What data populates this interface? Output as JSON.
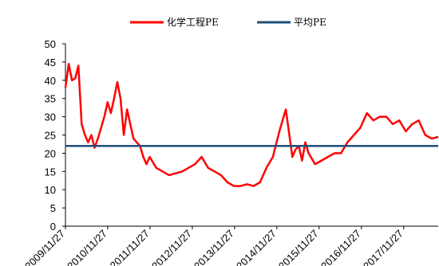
{
  "chart_data": {
    "type": "line",
    "title": "",
    "xlabel": "",
    "ylabel": "",
    "ylim": [
      0,
      50
    ],
    "y_ticks": [
      0,
      5,
      10,
      15,
      20,
      25,
      30,
      35,
      40,
      45,
      50
    ],
    "x_tick_labels": [
      "2009/11/27",
      "2010/11/27",
      "2011/11/27",
      "2012/11/27",
      "2013/11/27",
      "2014/11/27",
      "2015/11/27",
      "2016/11/27",
      "2017/11/27"
    ],
    "legend": {
      "placement": "top-center"
    },
    "grid": false,
    "series": [
      {
        "name": "化学工程PE",
        "color": "#ff0000",
        "x": [
          "2009-11-27",
          "2009-12-25",
          "2010-01-22",
          "2010-02-19",
          "2010-03-19",
          "2010-04-16",
          "2010-05-14",
          "2010-06-11",
          "2010-07-09",
          "2010-08-06",
          "2010-09-03",
          "2010-10-01",
          "2010-10-29",
          "2010-11-26",
          "2010-12-24",
          "2011-01-21",
          "2011-02-18",
          "2011-03-18",
          "2011-04-15",
          "2011-05-13",
          "2011-06-10",
          "2011-07-08",
          "2011-08-05",
          "2011-09-02",
          "2011-09-30",
          "2011-10-28",
          "2011-11-25",
          "2012-01-20",
          "2012-03-16",
          "2012-05-11",
          "2012-07-06",
          "2012-08-31",
          "2012-10-26",
          "2012-12-21",
          "2013-02-15",
          "2013-04-12",
          "2013-06-07",
          "2013-08-02",
          "2013-09-27",
          "2013-11-22",
          "2014-01-17",
          "2014-03-14",
          "2014-05-09",
          "2014-07-04",
          "2014-08-29",
          "2014-10-24",
          "2014-12-19",
          "2015-02-13",
          "2015-04-10",
          "2015-05-08",
          "2015-06-05",
          "2015-07-03",
          "2015-07-31",
          "2015-08-28",
          "2015-10-23",
          "2015-12-18",
          "2016-02-12",
          "2016-04-08",
          "2016-06-03",
          "2016-07-29",
          "2016-09-23",
          "2016-11-18",
          "2017-01-13",
          "2017-03-10",
          "2017-05-05",
          "2017-06-30",
          "2017-08-25",
          "2017-10-20",
          "2017-12-15",
          "2018-02-09",
          "2018-04-06",
          "2018-06-01",
          "2018-07-27",
          "2018-09-21"
        ],
        "values": [
          38,
          44.5,
          40,
          40.5,
          44,
          28,
          25,
          23,
          25,
          21.5,
          24,
          27,
          30,
          34,
          31,
          35,
          39.5,
          35,
          25,
          32,
          28,
          24,
          23,
          22,
          19,
          17,
          19,
          16,
          15,
          14,
          14.5,
          15,
          16,
          17,
          19,
          16,
          15,
          14,
          12,
          11,
          11,
          11.5,
          11,
          12,
          16,
          19,
          26,
          32,
          19,
          21,
          22,
          18,
          23,
          20,
          17,
          18,
          19,
          20,
          20,
          23,
          25,
          27,
          31,
          29,
          30,
          30,
          28,
          29,
          26,
          28,
          29,
          25,
          24,
          24.5
        ]
      },
      {
        "name": "平均PE",
        "color": "#1f4e79",
        "x": [
          "2009-11-27",
          "2018-09-21"
        ],
        "values": [
          22,
          22
        ]
      }
    ]
  }
}
